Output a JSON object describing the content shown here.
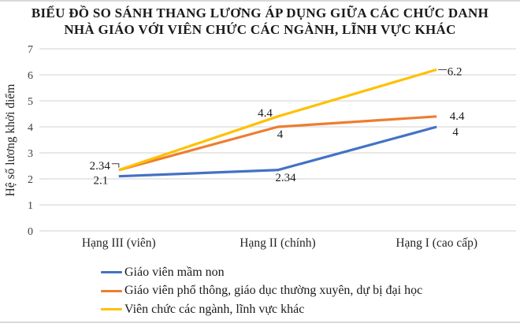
{
  "colors": {
    "grid": "#d9d9d9",
    "tick_text": "#404040",
    "category_text": "#262626",
    "label_text": "#1a1a1a",
    "leader_line": "#404040",
    "border_line": "#d9d9d9",
    "series_blue": "#4472C4",
    "series_orange": "#ED7D31",
    "series_yellow": "#FFC000"
  },
  "chart_data": {
    "type": "line",
    "title": "BIỂU ĐỒ SO SÁNH THANG LƯƠNG ÁP DỤNG GIỮA CÁC CHỨC DANH NHÀ GIÁO VỚI VIÊN CHỨC CÁC NGÀNH, LĨNH VỰC KHÁC",
    "title_lines": [
      "BIỂU ĐỒ SO SÁNH THANG LƯƠNG ÁP DỤNG GIỮA CÁC CHỨC DANH",
      "NHÀ GIÁO VỚI VIÊN CHỨC CÁC NGÀNH, LĨNH VỰC KHÁC"
    ],
    "ylabel": "Hệ số lương khởi điểm",
    "xlabel": "",
    "ylim": [
      0,
      7
    ],
    "yticks": [
      0,
      1,
      2,
      3,
      4,
      5,
      6,
      7
    ],
    "grid": true,
    "legend_position": "bottom-left",
    "data_labels": true,
    "categories": [
      "Hạng III (viên)",
      "Hạng II (chính)",
      "Hạng I (cao cấp)"
    ],
    "series": [
      {
        "name": "Giáo viên mầm non",
        "color": "#4472C4",
        "values": [
          2.1,
          2.34,
          4
        ],
        "point_labels": [
          {
            "text": "2.1",
            "dx": -23,
            "dy": 10,
            "anchor": "middle"
          },
          {
            "text": "2.34",
            "dx": 10,
            "dy": 14,
            "anchor": "middle"
          },
          {
            "text": "4",
            "dx": 24,
            "dy": 11,
            "anchor": "middle"
          }
        ]
      },
      {
        "name": "Giáo viên phổ thông, giáo dục thường xuyên, dự bị đại học",
        "color": "#ED7D31",
        "values": [
          2.34,
          4,
          4.4
        ],
        "point_labels": [
          {
            "text": "2.34",
            "dx": -11,
            "dy": -1,
            "anchor": "end",
            "leader": [
              [
                -9,
                -8
              ],
              [
                0,
                -8
              ],
              [
                0,
                -3
              ]
            ]
          },
          {
            "text": "4",
            "dx": 3,
            "dy": 14,
            "anchor": "middle"
          },
          {
            "text": "4.4",
            "dx": 26,
            "dy": 4,
            "anchor": "middle"
          }
        ]
      },
      {
        "name": "Viên chức các ngành, lĩnh vực khác",
        "color": "#FFC000",
        "values": [
          2.34,
          4.4,
          6.2
        ],
        "point_labels": [
          null,
          {
            "text": "4.4",
            "dx": -16,
            "dy": 0,
            "anchor": "middle"
          },
          {
            "text": "6.2",
            "dx": 23,
            "dy": 7,
            "anchor": "middle",
            "leader": [
              [
                2,
                0
              ],
              [
                13,
                0
              ]
            ]
          }
        ]
      }
    ]
  }
}
